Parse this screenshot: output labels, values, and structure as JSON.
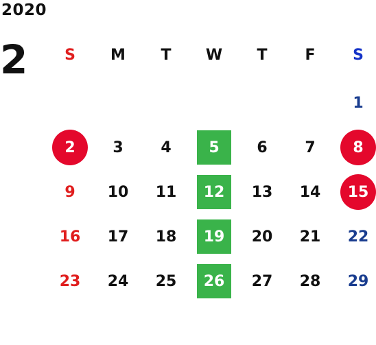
{
  "year": "2020",
  "month": "2",
  "weekdays": [
    "S",
    "M",
    "T",
    "W",
    "T",
    "F",
    "S"
  ],
  "weeks": [
    [
      "",
      "",
      "",
      "",
      "",
      "",
      "1"
    ],
    [
      "2",
      "3",
      "4",
      "5",
      "6",
      "7",
      "8"
    ],
    [
      "9",
      "10",
      "11",
      "12",
      "13",
      "14",
      "15"
    ],
    [
      "16",
      "17",
      "18",
      "19",
      "20",
      "21",
      "22"
    ],
    [
      "23",
      "24",
      "25",
      "26",
      "27",
      "28",
      "29"
    ]
  ],
  "highlights": {
    "circled_days": [
      "2",
      "8",
      "15"
    ],
    "boxed_days": [
      "5",
      "12",
      "19",
      "26"
    ]
  },
  "colors": {
    "sunday": "#e01e1e",
    "saturday": "#1a3d8f",
    "circle": "#e4082c",
    "box": "#3ab34a"
  }
}
